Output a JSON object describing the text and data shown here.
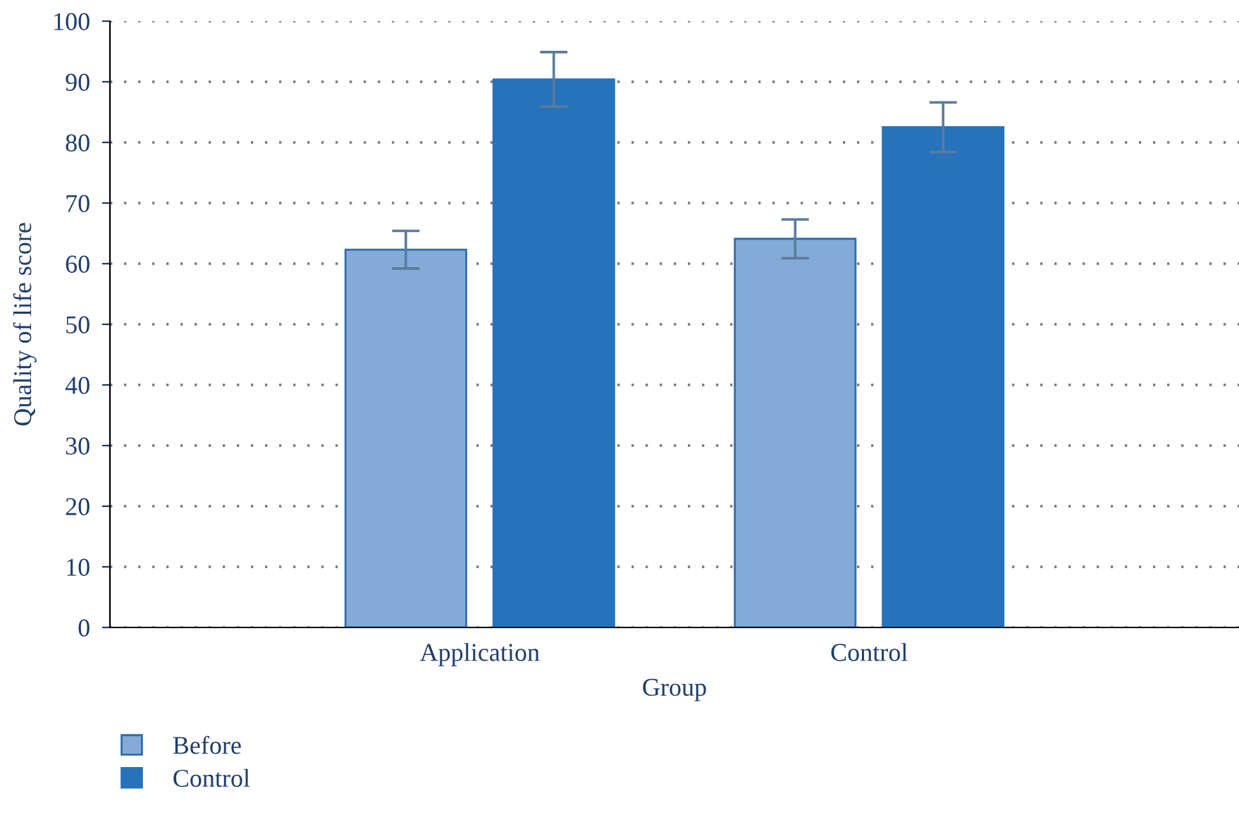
{
  "chart_data": {
    "type": "bar",
    "xlabel": "Group",
    "ylabel": "Quality of life score",
    "categories": [
      "Application",
      "Control"
    ],
    "series": [
      {
        "name": "Before",
        "color": "#84abd8",
        "values": [
          62.3,
          64.1
        ],
        "errors": [
          3.1,
          3.2
        ]
      },
      {
        "name": "Control",
        "color": "#2673bc",
        "values": [
          90.4,
          82.5
        ],
        "errors": [
          4.5,
          4.1
        ]
      }
    ],
    "ylim": [
      0,
      100
    ],
    "yticks": [
      0,
      10,
      20,
      30,
      40,
      50,
      60,
      70,
      80,
      90,
      100
    ],
    "grid": "y",
    "legend": "bottom left"
  }
}
